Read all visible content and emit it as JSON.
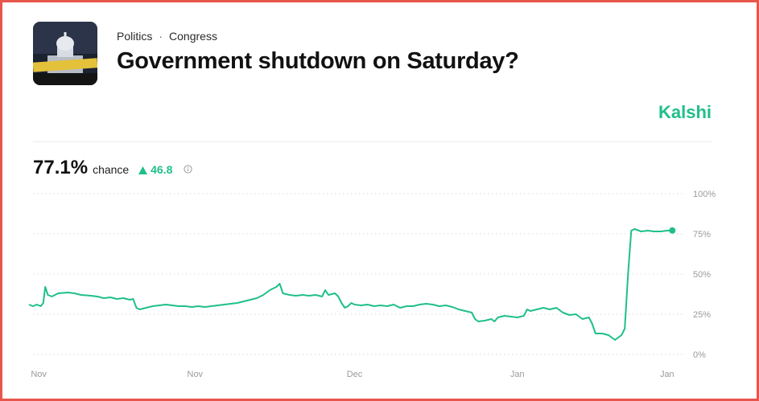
{
  "breadcrumb": {
    "category": "Politics",
    "separator": "·",
    "subcategory": "Congress"
  },
  "title": "Government shutdown on Saturday?",
  "brand": "Kalshi",
  "stat": {
    "value": "77.1%",
    "label": "chance",
    "delta": "46.8",
    "delta_icon": "triangle-up-icon",
    "info_icon": "info-icon"
  },
  "colors": {
    "accent": "#1fbf8a",
    "grid": "#d9d9d9",
    "border": "#e8564b"
  },
  "chart_data": {
    "type": "line",
    "y_ticks": [
      "100%",
      "75%",
      "50%",
      "25%",
      "0%"
    ],
    "x_ticks": [
      "Nov",
      "Nov",
      "Dec",
      "Jan",
      "Jan"
    ],
    "ylim": [
      0,
      100
    ],
    "x_range": [
      0,
      100
    ],
    "x_tick_positions": [
      1.5,
      25.5,
      50,
      75,
      98
    ],
    "series": [
      {
        "values": [
          [
            0,
            31
          ],
          [
            0.6,
            30
          ],
          [
            1.2,
            31
          ],
          [
            1.8,
            30
          ],
          [
            2.2,
            32
          ],
          [
            2.5,
            42
          ],
          [
            2.9,
            37
          ],
          [
            3.5,
            36
          ],
          [
            4.5,
            38
          ],
          [
            6,
            38.5
          ],
          [
            7,
            38
          ],
          [
            8,
            37
          ],
          [
            9.5,
            36.5
          ],
          [
            10.5,
            36
          ],
          [
            11.5,
            35
          ],
          [
            12.5,
            35.5
          ],
          [
            13.5,
            34.5
          ],
          [
            14.5,
            35
          ],
          [
            15.5,
            34
          ],
          [
            16,
            34.5
          ],
          [
            16.5,
            29
          ],
          [
            17,
            28
          ],
          [
            18,
            29
          ],
          [
            19,
            30
          ],
          [
            20,
            30.5
          ],
          [
            21,
            31
          ],
          [
            22,
            30.5
          ],
          [
            23,
            30
          ],
          [
            24,
            30
          ],
          [
            25,
            29.5
          ],
          [
            26,
            30
          ],
          [
            27,
            29.5
          ],
          [
            28,
            30
          ],
          [
            29,
            30.5
          ],
          [
            30,
            31
          ],
          [
            31,
            31.5
          ],
          [
            32,
            32
          ],
          [
            33,
            33
          ],
          [
            34,
            34
          ],
          [
            35,
            35
          ],
          [
            36,
            37
          ],
          [
            37,
            40
          ],
          [
            38,
            42
          ],
          [
            38.5,
            44
          ],
          [
            39,
            38
          ],
          [
            40,
            37
          ],
          [
            41,
            36.5
          ],
          [
            42,
            37
          ],
          [
            43,
            36.5
          ],
          [
            44,
            37
          ],
          [
            45,
            36
          ],
          [
            45.5,
            40
          ],
          [
            46,
            37
          ],
          [
            47,
            38
          ],
          [
            47.5,
            36
          ],
          [
            48,
            32
          ],
          [
            48.5,
            29
          ],
          [
            49,
            30
          ],
          [
            49.5,
            32
          ],
          [
            50,
            31
          ],
          [
            51,
            30.5
          ],
          [
            52,
            31
          ],
          [
            53,
            30
          ],
          [
            54,
            30.5
          ],
          [
            55,
            30
          ],
          [
            56,
            31
          ],
          [
            57,
            29
          ],
          [
            58,
            30
          ],
          [
            59,
            30
          ],
          [
            60,
            31
          ],
          [
            61,
            31.5
          ],
          [
            62,
            31
          ],
          [
            63,
            30
          ],
          [
            64,
            30.5
          ],
          [
            65,
            29.5
          ],
          [
            66,
            28
          ],
          [
            67,
            27
          ],
          [
            68,
            26
          ],
          [
            68.5,
            22
          ],
          [
            69,
            20.5
          ],
          [
            70,
            21
          ],
          [
            71,
            22
          ],
          [
            71.5,
            20.5
          ],
          [
            72,
            23
          ],
          [
            73,
            24
          ],
          [
            74,
            23.5
          ],
          [
            75,
            23
          ],
          [
            76,
            24
          ],
          [
            76.5,
            28
          ],
          [
            77,
            27
          ],
          [
            78,
            28
          ],
          [
            79,
            29
          ],
          [
            80,
            28
          ],
          [
            81,
            29
          ],
          [
            82,
            26
          ],
          [
            83,
            24.5
          ],
          [
            84,
            25
          ],
          [
            85,
            22
          ],
          [
            86,
            23
          ],
          [
            86.5,
            19
          ],
          [
            87,
            13
          ],
          [
            88,
            13
          ],
          [
            89,
            12
          ],
          [
            90,
            9
          ],
          [
            91,
            12
          ],
          [
            91.5,
            16
          ],
          [
            92,
            50
          ],
          [
            92.5,
            77
          ],
          [
            93,
            78
          ],
          [
            94,
            76.5
          ],
          [
            95,
            77
          ],
          [
            96,
            76.5
          ],
          [
            97,
            76.5
          ],
          [
            98,
            77
          ],
          [
            98.8,
            77.1
          ]
        ]
      }
    ]
  }
}
